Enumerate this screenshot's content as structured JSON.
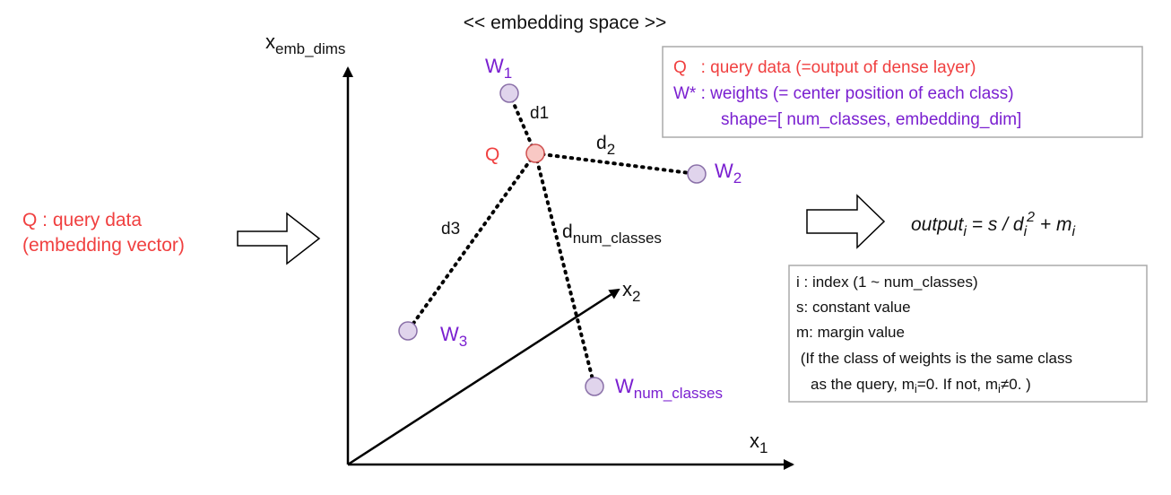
{
  "title": "<< embedding space >>",
  "colors": {
    "query": "#f04040",
    "weights": "#7a1fd0",
    "node_query_fill": "#f8c8c4",
    "node_query_stroke": "#d05050",
    "node_weight_fill": "#e0d4ec",
    "node_weight_stroke": "#8a70a8",
    "box_stroke": "#aaaaaa"
  },
  "axes": {
    "y": {
      "base": "x",
      "sub": "emb_dims"
    },
    "x": {
      "base": "x",
      "sub": "1"
    },
    "diag": {
      "base": "x",
      "sub": "2"
    }
  },
  "input": {
    "line1": "Q : query data",
    "line2": "(embedding vector)"
  },
  "query_label": "Q",
  "weights": [
    {
      "base": "W",
      "sub": "1"
    },
    {
      "base": "W",
      "sub": "2"
    },
    {
      "base": "W",
      "sub": "3"
    },
    {
      "base": "W",
      "sub": "num_classes"
    }
  ],
  "distances": [
    {
      "text": "d1",
      "base": "d1",
      "sub": ""
    },
    {
      "text": "d2",
      "base": "d",
      "sub": "2"
    },
    {
      "text": "d3",
      "base": "d3",
      "sub": ""
    },
    {
      "text": "dnum_classes",
      "base": "d",
      "sub": "num_classes"
    }
  ],
  "legend": {
    "q_line": "Q   : query data (=output of dense layer)",
    "w_line": "W* : weights (= center position of each class)",
    "shape_line": "shape=[ num_classes, embedding_dim]"
  },
  "formula": {
    "lhs": "output",
    "lhs_sub": "i",
    "eq": " = s / ",
    "d": "d",
    "d_sub": "i",
    "d_sup": "2",
    "plus": " + ",
    "m": "m",
    "m_sub": "i"
  },
  "notes": {
    "line1": "i : index (1 ~ num_classes)",
    "line2": "s: constant value",
    "line3": "m: margin value",
    "line4": " (If the class of weights is the same class",
    "line5_a": "as the query, m",
    "line5_sub1": "i",
    "line5_b": "=0. If not, m",
    "line5_sub2": "i",
    "line5_c": "≠0. )"
  }
}
